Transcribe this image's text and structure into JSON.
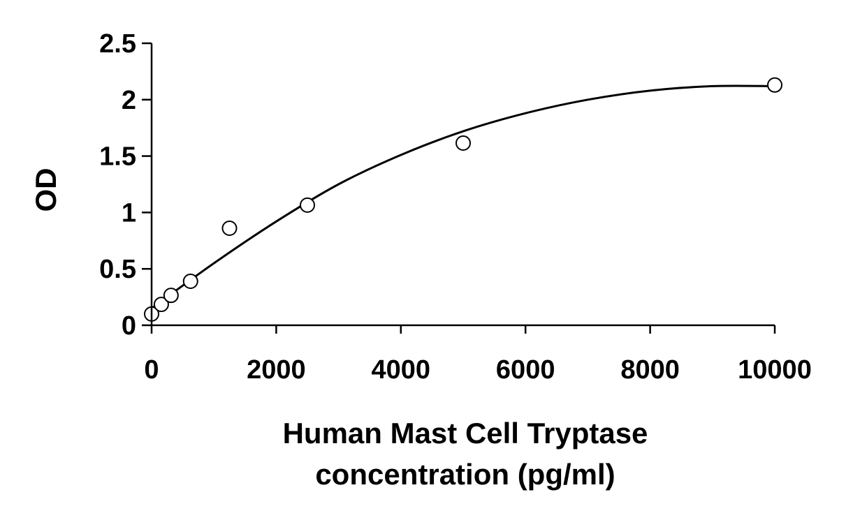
{
  "chart_data": {
    "type": "scatter",
    "title": "",
    "ylabel": "OD",
    "xlabel_lines": [
      "Human Mast Cell Tryptase",
      "concentration (pg/ml)"
    ],
    "xlim": [
      0,
      10000
    ],
    "ylim": [
      0,
      2.5
    ],
    "x_ticks": [
      0,
      2000,
      4000,
      6000,
      8000,
      10000
    ],
    "x_tick_labels": [
      "0",
      "2000",
      "4000",
      "6000",
      "8000",
      "10000"
    ],
    "y_ticks": [
      0,
      0.5,
      1,
      1.5,
      2,
      2.5
    ],
    "y_tick_labels": [
      "0",
      "0.5",
      "1",
      "1.5",
      "2",
      "2.5"
    ],
    "grid": false,
    "legend": "none",
    "series": [
      {
        "marker": "open-circle",
        "points": [
          {
            "x": 0,
            "y": 0.1
          },
          {
            "x": 156,
            "y": 0.185
          },
          {
            "x": 312,
            "y": 0.265
          },
          {
            "x": 625,
            "y": 0.39
          },
          {
            "x": 1250,
            "y": 0.86
          },
          {
            "x": 2500,
            "y": 1.065
          },
          {
            "x": 5000,
            "y": 1.615
          },
          {
            "x": 10000,
            "y": 2.13
          }
        ]
      }
    ],
    "fit_curve": {
      "type": "quadratic",
      "points": [
        {
          "x": 0,
          "y": 0.15
        },
        {
          "x": 1000,
          "y": 0.55
        },
        {
          "x": 2000,
          "y": 0.92
        },
        {
          "x": 3000,
          "y": 1.25
        },
        {
          "x": 4000,
          "y": 1.51
        },
        {
          "x": 5000,
          "y": 1.72
        },
        {
          "x": 6000,
          "y": 1.88
        },
        {
          "x": 7000,
          "y": 2.0
        },
        {
          "x": 8000,
          "y": 2.08
        },
        {
          "x": 9000,
          "y": 2.12
        },
        {
          "x": 10000,
          "y": 2.12
        }
      ]
    },
    "colors": {
      "axis": "#000000",
      "marker_stroke": "#000000",
      "marker_fill": "#ffffff",
      "curve": "#000000"
    }
  }
}
